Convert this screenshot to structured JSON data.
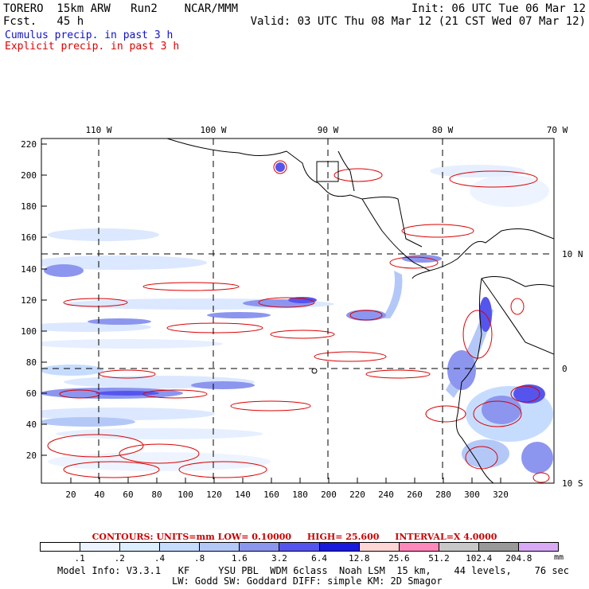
{
  "header": {
    "left1": "TORERO  15km ARW   Run2    NCAR/MMM",
    "left2": "Fcst.   45 h",
    "right1": "Init: 06 UTC Tue 06 Mar 12",
    "right2": "Valid: 03 UTC Thu 08 Mar 12 (21 CST Wed 07 Mar 12)"
  },
  "legend": {
    "cumulus": "Cumulus precip. in past 3 h",
    "explicit": "Explicit precip. in past 3 h",
    "cumulus_color": "#1111cc",
    "explicit_color": "#dd0000"
  },
  "map": {
    "top_lon_labels": [
      "110 W",
      "100 W",
      "90 W",
      "80 W",
      "70 W"
    ],
    "right_lat_labels": [
      "10 N",
      "0",
      "10 S"
    ],
    "y_ticks": [
      "220",
      "200",
      "180",
      "160",
      "140",
      "120",
      "100",
      "80",
      "60",
      "40",
      "20"
    ],
    "x_ticks": [
      "20",
      "40",
      "60",
      "80",
      "100",
      "120",
      "140",
      "160",
      "180",
      "200",
      "220",
      "240",
      "260",
      "280",
      "300",
      "320"
    ]
  },
  "contours": {
    "units": "CONTOURS:  UNITS=mm  LOW= 0.10000",
    "high": "HIGH=  25.600",
    "interval": "INTERVAL=X  4.0000"
  },
  "colorbar": {
    "labels": [
      ".1",
      ".2",
      ".4",
      ".8",
      "1.6",
      "3.2",
      "6.4",
      "12.8",
      "25.6",
      "51.2",
      "102.4",
      "204.8"
    ],
    "colors": [
      "#ffffff",
      "#eef4ff",
      "#ddeeff",
      "#c6dcff",
      "#b4c8f8",
      "#8c96ef",
      "#5555ee",
      "#1a1add",
      "#ffd6d6",
      "#ff88bb",
      "#c8c8c8",
      "#999999",
      "#d8aaf5"
    ],
    "units": "mm"
  },
  "model_info": {
    "line1": "Model Info: V3.3.1   KF     YSU PBL  WDM 6class  Noah LSM  15 km,    44 levels,    76 sec",
    "line2": "LW: Godd SW: Goddard DIFF: simple KM: 2D Smagor"
  }
}
